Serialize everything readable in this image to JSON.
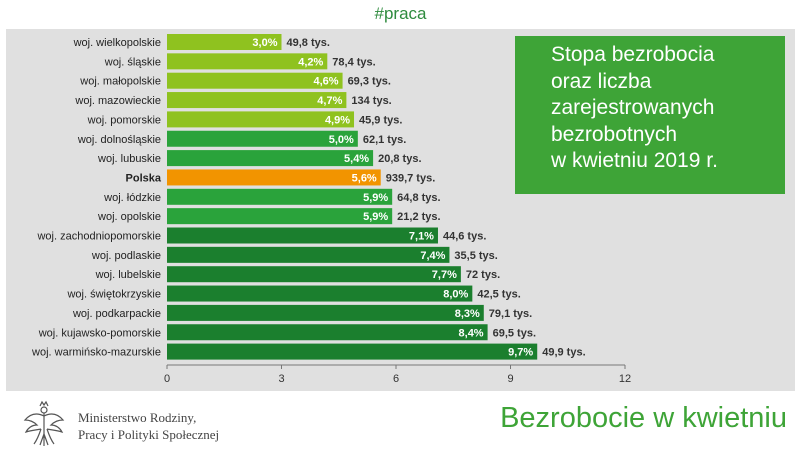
{
  "header": {
    "hashtag": "#praca"
  },
  "chart_data": {
    "type": "bar",
    "orientation": "horizontal",
    "title_lines": [
      "Stopa bezrobocia",
      "oraz liczba",
      "zarejestrowanych",
      "bezrobotnych",
      "w kwietniu 2019 r."
    ],
    "categories": [
      "woj. wielkopolskie",
      "woj. śląskie",
      "woj. małopolskie",
      "woj. mazowieckie",
      "woj. pomorskie",
      "woj. dolnośląskie",
      "woj. lubuskie",
      "Polska",
      "woj. łódzkie",
      "woj. opolskie",
      "woj. zachodniopomorskie",
      "woj. podlaskie",
      "woj. lubelskie",
      "woj. świętokrzyskie",
      "woj. podkarpackie",
      "woj. kujawsko-pomorskie",
      "woj. warmińsko-mazurskie"
    ],
    "values": [
      3.0,
      4.2,
      4.6,
      4.7,
      4.9,
      5.0,
      5.4,
      5.6,
      5.9,
      5.9,
      7.1,
      7.4,
      7.7,
      8.0,
      8.3,
      8.4,
      9.7
    ],
    "value_labels": [
      "3,0%",
      "4,2%",
      "4,6%",
      "4,7%",
      "4,9%",
      "5,0%",
      "5,4%",
      "5,6%",
      "5,9%",
      "5,9%",
      "7,1%",
      "7,4%",
      "7,7%",
      "8,0%",
      "8,3%",
      "8,4%",
      "9,7%"
    ],
    "secondary_labels": [
      "49,8 tys.",
      "78,4 tys.",
      "69,3 tys.",
      "134 tys.",
      "45,9 tys.",
      "62,1 tys.",
      "20,8 tys.",
      "939,7 tys.",
      "64,8 tys.",
      "21,2 tys.",
      "44,6 tys.",
      "35,5 tys.",
      "72 tys.",
      "42,5 tys.",
      "79,1 tys.",
      "69,5 tys.",
      "49,9 tys."
    ],
    "xlim": [
      0,
      12
    ],
    "xticks": [
      0,
      3,
      6,
      9,
      12
    ],
    "highlight_category": "Polska",
    "colors": {
      "light": "#8fc21f",
      "medium": "#2aa33b",
      "dark": "#1b7f2e",
      "highlight": "#f29400"
    }
  },
  "footer": {
    "ministry_lines": [
      "Ministerstwo Rodziny,",
      "Pracy i Polityki Społecznej"
    ],
    "title": "Bezrobocie w kwietniu"
  }
}
